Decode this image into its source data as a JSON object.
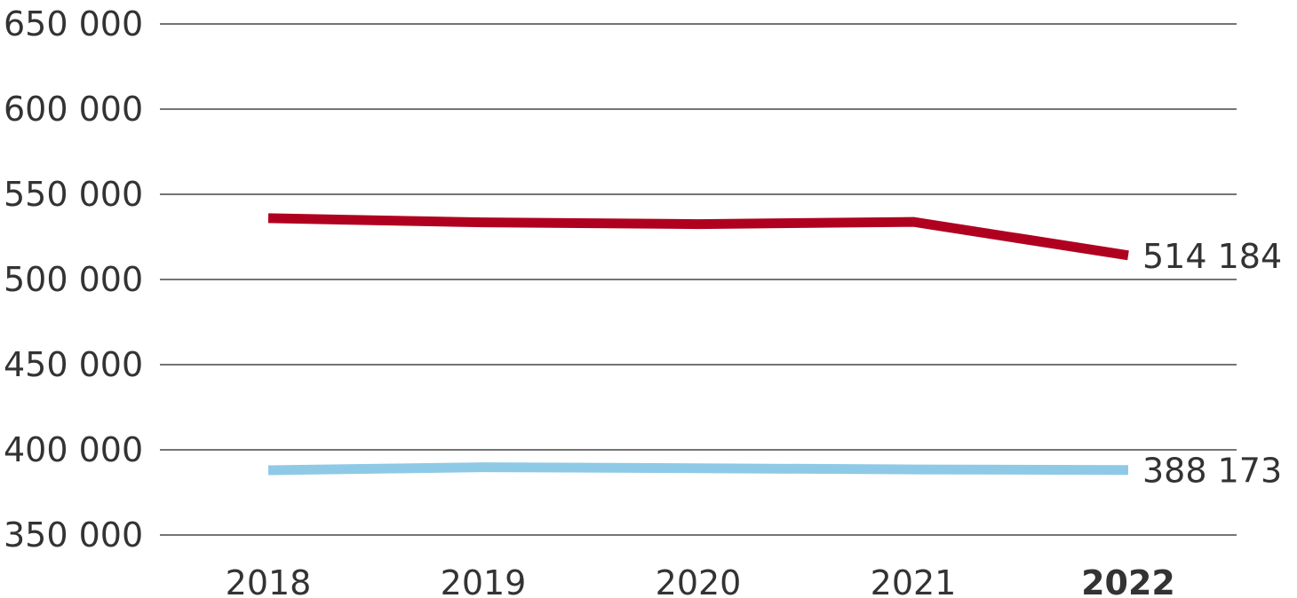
{
  "chart_data": {
    "type": "line",
    "categories": [
      "2018",
      "2019",
      "2020",
      "2021",
      "2022"
    ],
    "highlight_category": "2022",
    "y_ticks": [
      "650 000",
      "600 000",
      "550 000",
      "500 000",
      "450 000",
      "400 000",
      "350 000"
    ],
    "ylim": [
      350000,
      650000
    ],
    "grid": true,
    "series": [
      {
        "values": [
          536000,
          533500,
          532500,
          533800,
          514184
        ],
        "color": "#b00020",
        "end_label": "514 184"
      },
      {
        "values": [
          388000,
          389800,
          389200,
          388500,
          388173
        ],
        "color": "#8ecae6",
        "end_label": "388 173"
      }
    ]
  }
}
